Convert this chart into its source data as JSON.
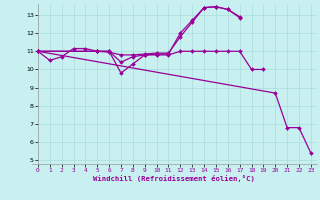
{
  "xlabel": "Windchill (Refroidissement éolien,°C)",
  "bg_color": "#c8f0f0",
  "line_color": "#990099",
  "grid_color": "#aadddd",
  "xlim": [
    -0.5,
    23.5
  ],
  "ylim": [
    4.8,
    13.6
  ],
  "yticks": [
    5,
    6,
    7,
    8,
    9,
    10,
    11,
    12,
    13
  ],
  "xticks": [
    0,
    1,
    2,
    3,
    4,
    5,
    6,
    7,
    8,
    9,
    10,
    11,
    12,
    13,
    14,
    15,
    16,
    17,
    18,
    19,
    20,
    21,
    22,
    23
  ],
  "lines": [
    {
      "x": [
        0,
        1,
        2,
        3,
        4,
        5,
        6,
        7,
        8,
        9,
        10,
        11,
        12,
        13,
        14,
        15,
        16,
        17,
        18,
        19
      ],
      "y": [
        11.0,
        10.5,
        10.7,
        11.15,
        11.15,
        11.0,
        11.0,
        9.8,
        10.3,
        10.8,
        10.8,
        10.8,
        11.0,
        11.0,
        11.0,
        11.0,
        11.0,
        11.0,
        10.0,
        10.0
      ]
    },
    {
      "x": [
        0,
        5,
        6,
        7,
        8,
        9,
        10,
        11,
        12,
        13,
        14,
        15,
        16,
        17
      ],
      "y": [
        11.0,
        11.0,
        11.0,
        10.4,
        10.7,
        10.8,
        10.85,
        10.85,
        12.0,
        12.7,
        13.4,
        13.45,
        13.3,
        12.9
      ]
    },
    {
      "x": [
        0,
        5,
        6,
        7,
        8,
        9,
        10,
        11,
        12,
        13,
        14,
        15,
        16,
        17
      ],
      "y": [
        11.0,
        11.0,
        10.95,
        10.8,
        10.8,
        10.85,
        10.9,
        10.9,
        11.8,
        12.6,
        13.4,
        13.45,
        13.3,
        12.85
      ]
    },
    {
      "x": [
        0,
        20,
        21,
        22,
        23
      ],
      "y": [
        11.0,
        8.7,
        6.8,
        6.8,
        5.4
      ]
    }
  ]
}
